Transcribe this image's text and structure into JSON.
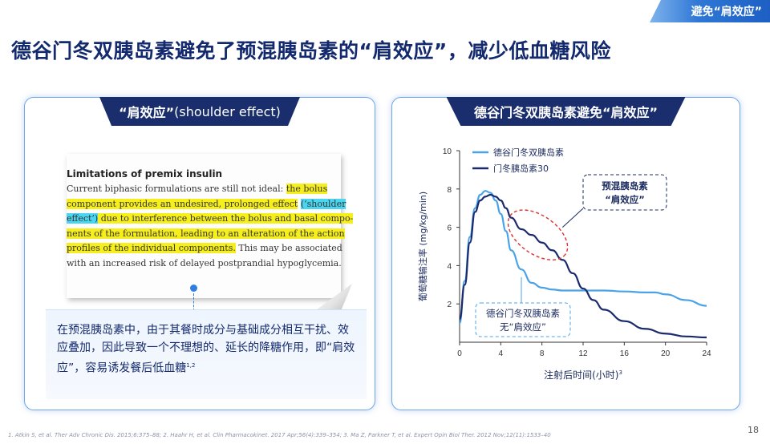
{
  "corner_tag": "避免“肩效应”",
  "page_title": "德谷门冬双胰岛素避免了预混胰岛素的“肩效应”，减少低血糖风险",
  "left_panel": {
    "header_strong": "“肩效应”",
    "header_rest": "(shoulder effect)",
    "doc": {
      "title": "Limitations of premix insulin",
      "lines": [
        [
          {
            "t": "Current biphasic formulations are still not ideal: ",
            "h": ""
          },
          {
            "t": "the bolus",
            "h": "y"
          }
        ],
        [
          {
            "t": "component provides an undesired, prolonged effect",
            "h": "y"
          },
          {
            "t": " ",
            "h": ""
          },
          {
            "t": "(‘shoulder",
            "h": "c"
          }
        ],
        [
          {
            "t": "effect’)",
            "h": "c"
          },
          {
            "t": " due to interference between the bolus and basal compo-",
            "h": "y"
          }
        ],
        [
          {
            "t": "nents of the formulation, leading to an alteration of the action",
            "h": "y"
          }
        ],
        [
          {
            "t": "profiles of the individual components.",
            "h": "y"
          },
          {
            "t": " This may be associated",
            "h": ""
          }
        ],
        [
          {
            "t": "with an increased risk of delayed postprandial hypoglycemia.",
            "h": ""
          }
        ]
      ]
    },
    "description": "在预混胰岛素中，由于其餐时成分与基础成分相互干扰、效应叠加，因此导致一个不理想的、延长的降糖作用，即“肩效应”，容易诱发餐后低血糖",
    "description_sup": "1,2"
  },
  "right_panel": {
    "header": "德谷门冬双胰岛素避免“肩效应”",
    "chart_data": {
      "type": "line",
      "title": "",
      "xlabel": "注射后时间(小时)",
      "xlabel_sup": "3",
      "ylabel": "葡萄糖输注率 (mg/kg/min)",
      "xlim": [
        0,
        24
      ],
      "ylim": [
        0,
        10
      ],
      "xticks": [
        0,
        4,
        8,
        12,
        16,
        20,
        24
      ],
      "yticks": [
        2,
        4,
        6,
        8,
        10
      ],
      "grid": false,
      "legend": "top-left",
      "series": [
        {
          "name": "德谷门冬双胰岛素",
          "color": "#4aa3e8",
          "x": [
            0,
            0.5,
            1,
            1.5,
            2,
            2.5,
            3,
            3.5,
            4,
            4.5,
            5,
            6,
            7,
            8,
            9,
            10,
            12,
            14,
            16,
            18,
            19,
            20,
            22,
            24
          ],
          "y": [
            1.0,
            3.2,
            5.5,
            7.0,
            7.7,
            7.9,
            7.8,
            7.4,
            6.7,
            5.8,
            4.8,
            3.8,
            3.1,
            2.85,
            2.75,
            2.7,
            2.7,
            2.7,
            2.65,
            2.6,
            2.6,
            2.5,
            2.2,
            1.9
          ]
        },
        {
          "name": "门冬胰岛素30",
          "color": "#1a2a6e",
          "x": [
            0,
            0.5,
            1,
            1.5,
            2,
            2.5,
            3,
            3.5,
            4,
            4.5,
            5,
            6,
            7,
            8,
            9,
            10,
            11,
            12,
            13,
            14,
            16,
            18,
            20,
            22,
            24
          ],
          "y": [
            1.2,
            3.0,
            5.2,
            6.8,
            7.4,
            7.6,
            7.7,
            7.6,
            7.4,
            7.0,
            6.5,
            5.9,
            5.6,
            5.2,
            4.8,
            4.3,
            3.6,
            2.8,
            2.2,
            1.7,
            1.1,
            0.7,
            0.45,
            0.3,
            0.25
          ]
        }
      ],
      "annotations": [
        {
          "line1": "预混胰岛素",
          "line2": "“肩效应”"
        },
        {
          "line1": "德谷门冬双胰岛素",
          "line2": "无“肩效应”"
        }
      ]
    }
  },
  "footnote": "1. Atkin S, et al. Ther Adv Chronic Dis. 2015;6:375–88;  2. Haahr H, et al. Clin Pharmacokinet. 2017 Apr;56(4):339–354;  3. Ma Z, Parkner T, et al. Expert Opin Biol Ther. 2012 Nov;12(11):1533–40",
  "page_number": "18"
}
